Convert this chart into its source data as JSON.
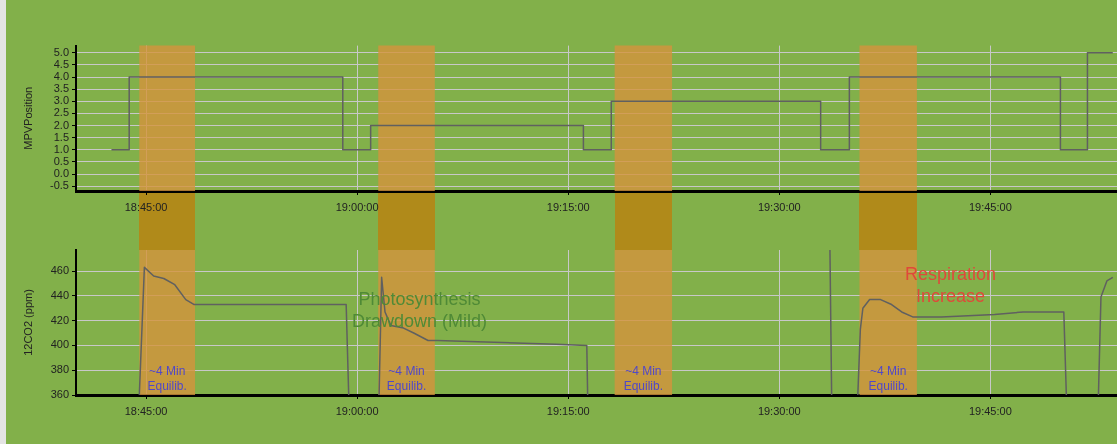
{
  "chart_data": [
    {
      "type": "step",
      "ylabel": "MPVPosition",
      "grid": true,
      "legend": false,
      "marker": "none",
      "xlim": [
        18.667,
        19.9
      ],
      "ylim": [
        -0.7,
        5.3
      ],
      "xticks": [
        {
          "value": 18.75,
          "label": "18:45:00"
        },
        {
          "value": 19,
          "label": "19:00:00"
        },
        {
          "value": 19.25,
          "label": "19:15:00"
        },
        {
          "value": 19.5,
          "label": "19:30:00"
        },
        {
          "value": 19.75,
          "label": "19:45:00"
        }
      ],
      "yticks": [
        {
          "value": -0.5,
          "label": "-0.5"
        },
        {
          "value": 0,
          "label": "0.0"
        },
        {
          "value": 0.5,
          "label": "0.5"
        },
        {
          "value": 1,
          "label": "1.0"
        },
        {
          "value": 1.5,
          "label": "1.5"
        },
        {
          "value": 2,
          "label": "2.0"
        },
        {
          "value": 2.5,
          "label": "2.5"
        },
        {
          "value": 3,
          "label": "3.0"
        },
        {
          "value": 3.5,
          "label": "3.5"
        },
        {
          "value": 4,
          "label": "4.0"
        },
        {
          "value": 4.5,
          "label": "4.5"
        },
        {
          "value": 5,
          "label": "5.0"
        }
      ],
      "series": [
        {
          "color": "#606060",
          "x": [
            18.709,
            18.73,
            18.983,
            19.016,
            19.268,
            19.301,
            19.549,
            19.583,
            19.833,
            19.865,
            19.895
          ],
          "values": [
            1,
            4,
            1,
            2,
            1,
            3,
            1,
            4,
            1,
            5,
            5
          ]
        }
      ],
      "bands": [
        {
          "axis": "x",
          "from": 18.742,
          "to": 18.808,
          "color": "#d4943c"
        },
        {
          "axis": "x",
          "from": 19.025,
          "to": 19.092,
          "color": "#d4943c"
        },
        {
          "axis": "x",
          "from": 19.305,
          "to": 19.373,
          "color": "#d4943c"
        },
        {
          "axis": "x",
          "from": 19.595,
          "to": 19.663,
          "color": "#d4943c"
        }
      ]
    },
    {
      "type": "line",
      "ylabel": "12CO2 (ppm)",
      "grid": true,
      "legend": false,
      "marker": "none",
      "xlim": [
        18.667,
        19.9
      ],
      "ylim": [
        360,
        477
      ],
      "xticks": [
        {
          "value": 18.75,
          "label": "18:45:00"
        },
        {
          "value": 19,
          "label": "19:00:00"
        },
        {
          "value": 19.25,
          "label": "19:15:00"
        },
        {
          "value": 19.5,
          "label": "19:30:00"
        },
        {
          "value": 19.75,
          "label": "19:45:00"
        }
      ],
      "yticks": [
        360,
        380,
        400,
        420,
        440,
        460
      ],
      "series": [
        {
          "color": "#606060",
          "x": [
            18.742,
            18.748,
            18.759,
            18.771,
            18.784,
            18.797,
            18.807,
            18.987,
            18.99,
            19.0,
            19.026,
            19.029,
            19.033,
            19.04,
            19.055,
            19.067,
            19.084,
            19.095,
            19.236,
            19.272,
            19.273,
            19.4,
            19.56,
            19.562,
            19.58,
            19.593,
            19.596,
            19.599,
            19.607,
            19.62,
            19.633,
            19.645,
            19.658,
            19.692,
            19.755,
            19.789,
            19.837,
            19.84,
            19.86,
            19.878,
            19.881,
            19.888,
            19.895
          ],
          "values": [
            360,
            463,
            456,
            454,
            449,
            437,
            433,
            433,
            360,
            null,
            360,
            455,
            427,
            416,
            414,
            410,
            404,
            404,
            401,
            400,
            360,
            null,
            477,
            360,
            null,
            360,
            413,
            430,
            437,
            437,
            433,
            427,
            423,
            423,
            425,
            427,
            427,
            360,
            null,
            360,
            439,
            452,
            455
          ]
        }
      ],
      "bands": [
        {
          "axis": "x",
          "from": 18.742,
          "to": 18.808,
          "color": "#d4943c",
          "label": "~4 Min\nEquilib."
        },
        {
          "axis": "x",
          "from": 19.025,
          "to": 19.092,
          "color": "#d4943c",
          "label": "~4 Min\nEquilib."
        },
        {
          "axis": "x",
          "from": 19.305,
          "to": 19.373,
          "color": "#d4943c",
          "label": "~4 Min\nEquilib."
        },
        {
          "axis": "x",
          "from": 19.595,
          "to": 19.663,
          "color": "#d4943c",
          "label": "~4 Min\nEquilib."
        }
      ],
      "annotations": [
        "Photosynthesis\nDrawdown (Mild)",
        "Respiration\nIncrease"
      ]
    }
  ]
}
